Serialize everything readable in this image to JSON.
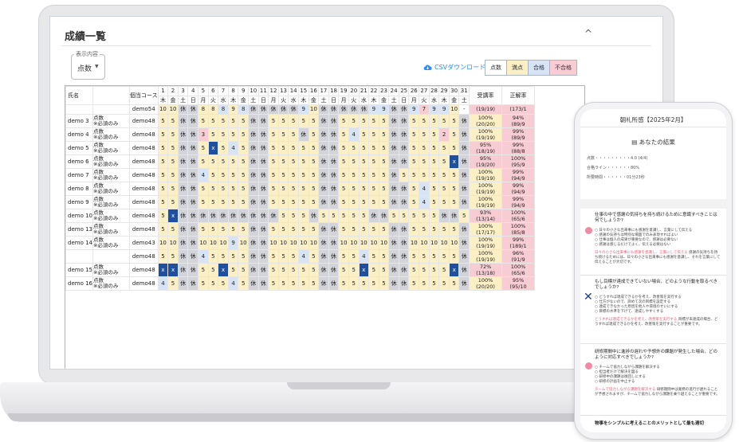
{
  "window": {
    "title": "成績一覧",
    "collapse": "^"
  },
  "display": {
    "label": "表示内容",
    "value": "点数"
  },
  "csv": {
    "label": "CSVダウンロード"
  },
  "legend": [
    "点数",
    "満点",
    "合格",
    "不合格"
  ],
  "colors": {
    "full": "#fbefc5",
    "pass": "#d6e4f5",
    "fail": "#f7ccd3",
    "holiday": "#d2d4d9",
    "highlight": "#1f4f9f"
  },
  "table": {
    "headers": {
      "name": "氏名",
      "course": "個当コース",
      "rate": "受講率",
      "accuracy": "正解率"
    },
    "days": [
      "1",
      "2",
      "3",
      "4",
      "5",
      "6",
      "7",
      "8",
      "9",
      "10",
      "11",
      "12",
      "13",
      "14",
      "15",
      "16",
      "17",
      "18",
      "19",
      "20",
      "21",
      "22",
      "23",
      "24",
      "25",
      "26",
      "27",
      "28",
      "29",
      "30",
      "31"
    ],
    "weekdays": [
      "木",
      "金",
      "土",
      "日",
      "月",
      "火",
      "水",
      "木",
      "金",
      "土",
      "日",
      "月",
      "火",
      "水",
      "木",
      "金",
      "土",
      "日",
      "月",
      "火",
      "水",
      "木",
      "金",
      "土",
      "日",
      "月",
      "火",
      "水",
      "木",
      "金",
      "土"
    ],
    "rows": [
      {
        "name": "",
        "type": "",
        "course": "demo54",
        "cells": "10,10,休,休,8,8,8,9,8,休,休,休,休,休,9,10,休,休,休,休,休,9,9,休,休,9,7,9,9,10,-",
        "classes": "y,y,g,g,y,y,b,y,b,g,g,g,g,g,b,y,g,g,g,g,g,b,b,g,g,b,p,b,b,y,w",
        "rate": "(19/19)",
        "acc": "(173/1"
      },
      {
        "name": "demo 3",
        "type": "点数|※必須のみ",
        "course": "demo48",
        "cells": "5,5,休,休,5,5,5,5,5,休,休,5,5,5,5,5,休,休,5,5,5,5,5,休,休,5,5,5,5,5,休",
        "classes": "y,y,g,g,y,y,y,y,y,g,g,y,y,y,y,y,g,g,y,y,y,y,y,g,g,y,y,y,y,y,g",
        "rate": "100%|(20/20)",
        "acc": "94%|(89/9"
      },
      {
        "name": "demo 4",
        "type": "点数|※必須のみ",
        "course": "demo48",
        "cells": "5,5,休,休,3,5,5,5,5,休,休,5,5,5,休,5,休,休,5,4,5,5,5,休,休,5,5,5,2,5,休",
        "classes": "y,y,g,g,p,y,y,y,y,g,g,y,y,y,g,y,g,g,y,b,y,y,y,g,g,y,y,y,p,y,g",
        "rate": "100%|(19/19)",
        "acc": "99%|(89/9"
      },
      {
        "name": "demo 5",
        "type": "点数|※必須のみ",
        "course": "demo48",
        "cells": "5,5,休,休,5,x,5,4,5,休,休,5,5,5,5,5,休,休,5,5,5,5,5,休,休,5,5,5,5,5,休",
        "classes": "y,y,g,g,y,k,y,b,y,g,g,y,y,y,y,y,g,g,y,y,y,y,y,g,g,y,y,y,y,y,g",
        "rate": "95%|(18/19)",
        "acc": "99%|(88/8"
      },
      {
        "name": "demo 6",
        "type": "点数|※必須のみ",
        "course": "demo48",
        "cells": "5,5,休,休,5,5,5,5,5,休,休,5,5,5,5,5,休,休,5,5,5,5,5,休,休,5,5,5,5,x,休",
        "classes": "y,y,g,g,y,y,y,y,y,g,g,y,y,y,y,y,g,g,y,y,y,y,y,g,g,y,y,y,y,k,g",
        "rate": "95%|(19/20)",
        "acc": "100%|(95/9"
      },
      {
        "name": "demo 7",
        "type": "点数|※必須のみ",
        "course": "demo48",
        "cells": "5,5,休,休,4,5,5,5,5,休,休,5,5,5,5,5,休,休,5,5,5,5,5,休,5,5,5,5,5,5,休",
        "classes": "y,y,g,g,b,y,y,y,y,g,g,y,y,y,y,y,g,g,y,y,y,y,y,g,y,y,y,y,y,y,g",
        "rate": "100%|(19/19)",
        "acc": "99%|(94/9"
      },
      {
        "name": "demo 8",
        "type": "点数|※必須のみ",
        "course": "demo48",
        "cells": "5,5,休,休,5,5,5,5,5,休,休,5,5,5,5,5,休,休,5,5,5,5,5,休,休,5,4,5,5,5,休",
        "classes": "y,y,g,g,y,y,y,y,y,g,g,y,y,y,y,y,g,g,y,y,y,y,y,g,g,y,b,y,y,y,g",
        "rate": "100%|(19/19)",
        "acc": "99%|(94/9"
      },
      {
        "name": "demo 9",
        "type": "点数|※必須のみ",
        "course": "demo48",
        "cells": "5,5,休,休,5,5,5,5,5,休,休,5,5,5,5,5,休,休,5,5,5,5,5,休,休,5,4,5,5,5,休",
        "classes": "y,y,g,g,y,y,y,y,y,g,g,y,y,y,y,y,g,g,y,y,y,y,y,g,g,y,b,y,y,y,g",
        "rate": "100%|(19/19)",
        "acc": "99%|(94/9"
      },
      {
        "name": "demo 10",
        "type": "点数|※必須のみ",
        "course": "demo48",
        "cells": "5,x,休,休,休,休,休,休,休,休,休,休,5,5,5,休,5,5,5,5,5,休,休,5,5,5,5,5,休,休,5",
        "classes": "y,k,g,g,g,g,g,g,g,g,g,g,y,y,y,g,y,y,y,y,y,g,g,y,y,y,y,y,g,g,y",
        "rate": "93%|(13/14)",
        "acc": "100%|(65/6"
      },
      {
        "name": "demo 13",
        "type": "点数|※必須のみ",
        "course": "demo48",
        "cells": "5,5,休,休,5,5,5,5,5,休,休,5,5,5,5,5,休,休,5,5,5,5,5,休,休,5,5,5,5,5,休",
        "classes": "y,y,g,g,y,y,y,y,y,g,g,y,y,y,y,y,g,g,y,y,y,y,y,g,g,y,y,y,y,y,g",
        "rate": "100%|(17/17)",
        "acc": "100%|(85/8"
      },
      {
        "name": "demo 14",
        "type": "点数|※必須のみ",
        "course": "demo43",
        "cells": "10,10,休,休,10,10,10,9,10,休,休,10,10,10,10,10,休,休,10,10,10,10,10,休,休,10,10,10,10,10,休",
        "classes": "y,y,g,g,y,y,y,b,y,g,g,y,y,y,y,y,g,g,y,y,y,y,y,g,g,y,y,y,y,y,g",
        "rate": "100%|(19/19)",
        "acc": "99%|(189/1"
      },
      {
        "name": "",
        "type": "",
        "course": "demo48",
        "cells": "5,5,休,休,4,5,5,5,5,休,休,5,5,5,4,5,休,休,5,5,4,5,5,休,休,5,5,5,5,5,休",
        "classes": "y,y,g,g,b,y,y,y,y,g,g,y,y,y,b,y,g,g,y,y,b,y,y,g,g,y,y,y,y,y,g",
        "rate": "100%|(19/19)",
        "acc": "96%|(91/9"
      },
      {
        "name": "demo 15",
        "type": "点数|※必須のみ",
        "course": "demo48",
        "cells": "x,x,休,休,5,5,x,5,5,休,休,5,5,5,5,5,休,休,5,5,x,5,5,休,休,5,5,5,5,x,休",
        "classes": "k,k,g,g,y,y,k,y,y,g,g,y,y,y,y,y,g,g,y,y,k,y,y,g,g,y,y,y,y,k,g",
        "rate": "72%|(13/18)",
        "acc": "100%|(65/6"
      },
      {
        "name": "demo 16",
        "type": "点数|※必須のみ",
        "course": "demo48",
        "cells": "4,5,休,休,5,5,5,4,5,休,休,5,5,5,5,5,休,休,5,5,5,5,5,休,休,5,5,5,5,5,休",
        "classes": "b,y,g,g,y,y,y,b,y,g,g,y,y,y,y,y,g,g,y,y,y,y,y,g,g,y,y,y,y,y,g",
        "rate": "100%|(20/20)",
        "acc": "95%|(95/10"
      }
    ]
  },
  "phone": {
    "title": "朝礼所感【2025年2月】",
    "result": "あなたの結果",
    "stats": [
      "点数・・・・・・・・・4.0 (4/4)",
      "合格ライン・・・・・・80%",
      "所要時間・・・・・・01分23秒"
    ],
    "q1": "仕事の中で感謝の気持ちを持ち続けるために意識すべきことは何でしょうか?",
    "q1_opts": [
      "○ 日々の小さな出来事にも感謝を意識し、言葉にして伝える",
      "○ 感謝の気持ちは特別な場面でのみ表現すればよい",
      "○ 仕事は個人の成果が重要なので、感謝は必要ない",
      "○ 感謝は感じるだけでよく、伝える必要はない"
    ],
    "q1_exp_mark": "日々の小さな出来事にも感謝を意識し、言葉にして伝える",
    "q1_exp": "感謝の気持ちを持ち続けるためには、日々の小さな出来事にも感謝を意識し、それを言葉にして伝えることが大切です。",
    "q2": "もし目標が達成できていない場合、どのような行動を取るべきでしょうか?",
    "q2_opts": [
      "○ どうすれば達成できるかを考え、改善策を実行する",
      "○ 仕方がないので、諦めて次の目標を設定する",
      "○ 達成できなかった原因を他人や環境のせいにする",
      "○ 目標の水準を下げて、達成しやすくする"
    ],
    "q2_exp_mark": "どうすれば達成できるかを考え、改善策を実行する",
    "q2_exp": "目標が未達成の場合、どうすれば達成できるかを考え、改善策を実行することが重要です。",
    "q3": "研修期間中に進捗の遅れや予想外の課題が発生した場合、どのように対応すべきでしょうか?",
    "q3_opts": [
      "○ チームで協力しながら課題を解決する",
      "○ 担当者だけで解決を図る",
      "○ 研修中の課題は後回しにする",
      "○ 研修の計画を中止する"
    ],
    "q3_exp_mark": "チームで協力しながら課題を解決する",
    "q3_exp": "研修期間中は業務の進行が遅れることが予想されますが、チームで協力しながら課題を乗り越えることが重要です。",
    "q4": "物事をシンプルに考えることのメリットとして最も適切"
  }
}
